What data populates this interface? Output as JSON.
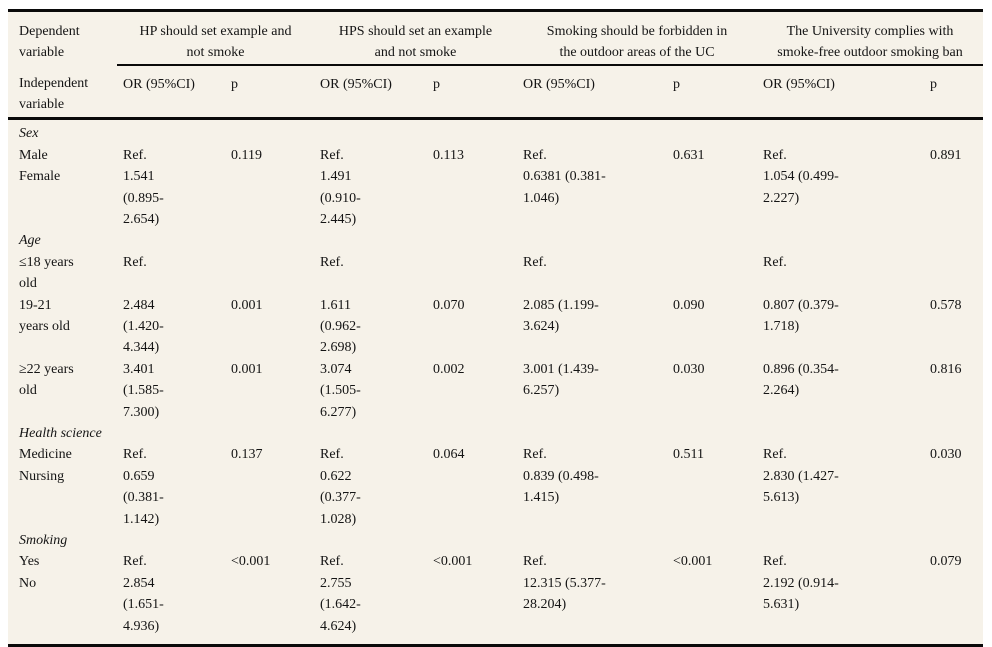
{
  "colors": {
    "table_background": "#f6f2e9",
    "text": "#141414",
    "rule": "#0a0a0a"
  },
  "table": {
    "corner_top": "Dependent\nvariable",
    "corner_bottom": "Independent\nvariable",
    "groups": [
      {
        "title": "HP should set example and\nnot smoke"
      },
      {
        "title": "HPS should set an example\nand not smoke"
      },
      {
        "title": "Smoking should be forbidden in\nthe outdoor areas of the UC"
      },
      {
        "title": "The University complies with\nsmoke-free outdoor smoking ban"
      }
    ],
    "subheaders": {
      "or": "OR (95%CI)",
      "p": "p"
    },
    "sections": [
      {
        "label": "Sex",
        "rows": [
          {
            "label": "Male",
            "cells": [
              "Ref.",
              "0.119",
              "Ref.",
              "0.113",
              "Ref.",
              "0.631",
              "Ref.",
              "0.891"
            ]
          },
          {
            "label": "Female",
            "cells": [
              "1.541\n(0.895-\n2.654)",
              "",
              "1.491\n(0.910-\n2.445)",
              "",
              "0.6381 (0.381-\n1.046)",
              "",
              "1.054 (0.499-\n2.227)",
              ""
            ]
          }
        ]
      },
      {
        "label": "Age",
        "rows": [
          {
            "label": "≤18 years\nold",
            "cells": [
              "Ref.",
              "",
              "Ref.",
              "",
              "Ref.",
              "",
              "Ref.",
              ""
            ]
          },
          {
            "label": "19-21\nyears old",
            "cells": [
              "2.484\n(1.420-\n4.344)",
              "0.001",
              "1.611\n(0.962-\n2.698)",
              "0.070",
              "2.085 (1.199-\n3.624)",
              "0.090",
              "0.807 (0.379-\n1.718)",
              "0.578"
            ]
          },
          {
            "label": "≥22 years\nold",
            "cells": [
              "3.401\n(1.585-\n7.300)",
              "0.001",
              "3.074\n(1.505-\n6.277)",
              "0.002",
              "3.001 (1.439-\n6.257)",
              "0.030",
              "0.896 (0.354-\n2.264)",
              "0.816"
            ]
          }
        ]
      },
      {
        "label": "Health science",
        "rows": [
          {
            "label": "Medicine",
            "cells": [
              "Ref.",
              "0.137",
              "Ref.",
              "0.064",
              "Ref.",
              "0.511",
              "Ref.",
              "0.030"
            ]
          },
          {
            "label": "Nursing",
            "cells": [
              "0.659\n(0.381-\n1.142)",
              "",
              "0.622\n(0.377-\n1.028)",
              "",
              "0.839 (0.498-\n1.415)",
              "",
              "2.830 (1.427-\n5.613)",
              ""
            ]
          }
        ]
      },
      {
        "label": "Smoking",
        "rows": [
          {
            "label": "Yes",
            "cells": [
              "Ref.",
              "<0.001",
              "Ref.",
              "<0.001",
              "Ref.",
              "<0.001",
              "Ref.",
              "0.079"
            ]
          },
          {
            "label": "No",
            "cells": [
              "2.854\n(1.651-\n4.936)",
              "",
              "2.755\n(1.642-\n4.624)",
              "",
              "12.315 (5.377-\n28.204)",
              "",
              "2.192 (0.914-\n5.631)",
              ""
            ]
          }
        ]
      }
    ]
  }
}
